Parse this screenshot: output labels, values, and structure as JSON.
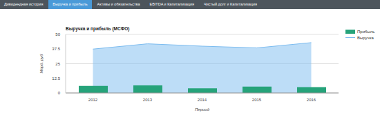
{
  "tabs": [
    "Дивидендная история",
    "Выручка и прибыль",
    "Активы и обязательства",
    "EBITDA и Капитализация",
    "Чистый долг и Капитализация"
  ],
  "active_tab": "Выручка и прибыль",
  "chart_data": {
    "type": "bar",
    "title": "Выручка и прибыль (МСФО)",
    "x_label": "Период",
    "y_label": "Млрд. руб",
    "categories": [
      "2012",
      "2013",
      "2014",
      "2015",
      "2016"
    ],
    "series": [
      {
        "name": "Прибыль",
        "type": "bar",
        "color": "#26a37a",
        "values": [
          6,
          6.5,
          4,
          5.5,
          5
        ]
      },
      {
        "name": "Выручка",
        "type": "area",
        "color": "#7cbcf0",
        "values": [
          37.5,
          42,
          40,
          38.5,
          43
        ]
      }
    ],
    "ylim": [
      0,
      50
    ],
    "yticks": [
      0,
      12.5,
      25,
      37.5,
      50
    ],
    "grid": true,
    "legend": "right"
  }
}
